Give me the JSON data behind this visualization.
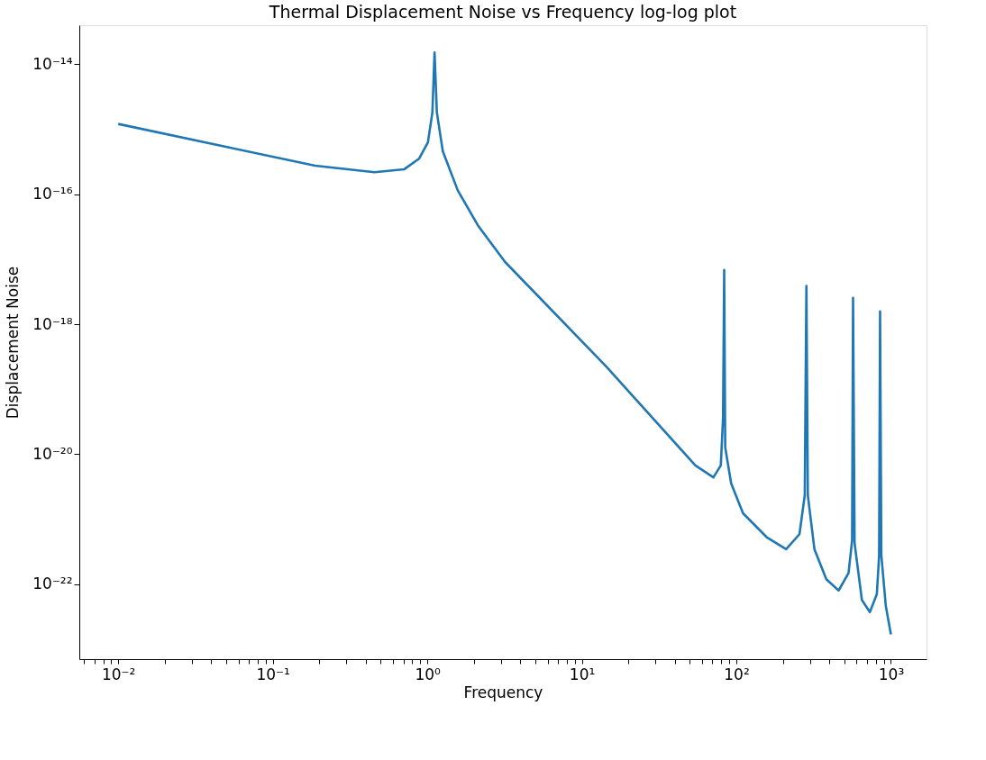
{
  "chart_data": {
    "type": "line",
    "title": "Thermal Displacement Noise vs Frequency log-log plot",
    "xlabel": "Frequency",
    "ylabel": "Displacement Noise",
    "log": "xy",
    "grid": false,
    "legend": false,
    "marker": "none",
    "line_style": "solid",
    "xlim": [
      0.0056,
      1700
    ],
    "ylim": [
      7e-24,
      4e-14
    ],
    "xticks": [
      {
        "value": 0.006,
        "label": null
      },
      {
        "value": 0.007,
        "label": null
      },
      {
        "value": 0.008,
        "label": null
      },
      {
        "value": 0.009,
        "label": null
      },
      {
        "value": 0.01,
        "label": "10⁻²"
      },
      {
        "value": 0.02,
        "label": null
      },
      {
        "value": 0.03,
        "label": null
      },
      {
        "value": 0.04,
        "label": null
      },
      {
        "value": 0.05,
        "label": null
      },
      {
        "value": 0.06,
        "label": null
      },
      {
        "value": 0.07,
        "label": null
      },
      {
        "value": 0.08,
        "label": null
      },
      {
        "value": 0.09,
        "label": null
      },
      {
        "value": 0.1,
        "label": "10⁻¹"
      },
      {
        "value": 0.2,
        "label": null
      },
      {
        "value": 0.3,
        "label": null
      },
      {
        "value": 0.4,
        "label": null
      },
      {
        "value": 0.5,
        "label": null
      },
      {
        "value": 0.6,
        "label": null
      },
      {
        "value": 0.7,
        "label": null
      },
      {
        "value": 0.8,
        "label": null
      },
      {
        "value": 0.9,
        "label": null
      },
      {
        "value": 1,
        "label": "10⁰"
      },
      {
        "value": 2,
        "label": null
      },
      {
        "value": 3,
        "label": null
      },
      {
        "value": 4,
        "label": null
      },
      {
        "value": 5,
        "label": null
      },
      {
        "value": 6,
        "label": null
      },
      {
        "value": 7,
        "label": null
      },
      {
        "value": 8,
        "label": null
      },
      {
        "value": 9,
        "label": null
      },
      {
        "value": 10,
        "label": "10¹"
      },
      {
        "value": 20,
        "label": null
      },
      {
        "value": 30,
        "label": null
      },
      {
        "value": 40,
        "label": null
      },
      {
        "value": 50,
        "label": null
      },
      {
        "value": 60,
        "label": null
      },
      {
        "value": 70,
        "label": null
      },
      {
        "value": 80,
        "label": null
      },
      {
        "value": 90,
        "label": null
      },
      {
        "value": 100,
        "label": "10²"
      },
      {
        "value": 200,
        "label": null
      },
      {
        "value": 300,
        "label": null
      },
      {
        "value": 400,
        "label": null
      },
      {
        "value": 500,
        "label": null
      },
      {
        "value": 600,
        "label": null
      },
      {
        "value": 700,
        "label": null
      },
      {
        "value": 800,
        "label": null
      },
      {
        "value": 900,
        "label": null
      },
      {
        "value": 1000,
        "label": "10³"
      }
    ],
    "yticks": [
      {
        "value": 1e-22,
        "label": "10⁻²²"
      },
      {
        "value": 1e-20,
        "label": "10⁻²⁰"
      },
      {
        "value": 1e-18,
        "label": "10⁻¹⁸"
      },
      {
        "value": 1e-16,
        "label": "10⁻¹⁶"
      },
      {
        "value": 1e-14,
        "label": "10⁻¹⁴"
      }
    ],
    "series": [
      {
        "color": "#1f77b4",
        "x": [
          0.01,
          0.0497,
          0.188,
          0.455,
          0.71,
          0.884,
          1.009,
          1.079,
          1.114,
          1.153,
          1.26,
          1.574,
          2.14,
          3.19,
          14.4,
          54.3,
          71,
          79.3,
          82,
          83.4,
          84.7,
          92.5,
          110.4,
          157,
          210,
          256,
          277,
          284,
          290,
          320,
          382,
          459,
          532,
          561,
          569,
          582,
          649,
          731,
          811,
          839,
          851,
          867,
          927,
          1000
        ],
        "values": [
          1.21e-15,
          5.38e-16,
          2.76e-16,
          2.18e-16,
          2.43e-16,
          3.52e-16,
          6.3e-16,
          1.82e-15,
          1.52e-14,
          1.82e-15,
          4.6e-16,
          1.15e-16,
          3.24e-17,
          9.06e-18,
          2.22e-19,
          6.7e-21,
          4.39e-21,
          6.7e-21,
          3.66e-20,
          6.85e-18,
          1.27e-20,
          3.56e-21,
          1.23e-21,
          5.28e-22,
          3.44e-22,
          5.86e-22,
          2.32e-21,
          3.89e-18,
          2.32e-21,
          3.44e-22,
          1.19e-22,
          7.98e-23,
          1.48e-22,
          4.73e-22,
          2.54e-18,
          4.27e-22,
          5.7e-23,
          3.72e-23,
          7.03e-23,
          2.79e-22,
          1.58e-18,
          2.79e-22,
          4.6e-23,
          1.68e-23
        ]
      }
    ]
  }
}
